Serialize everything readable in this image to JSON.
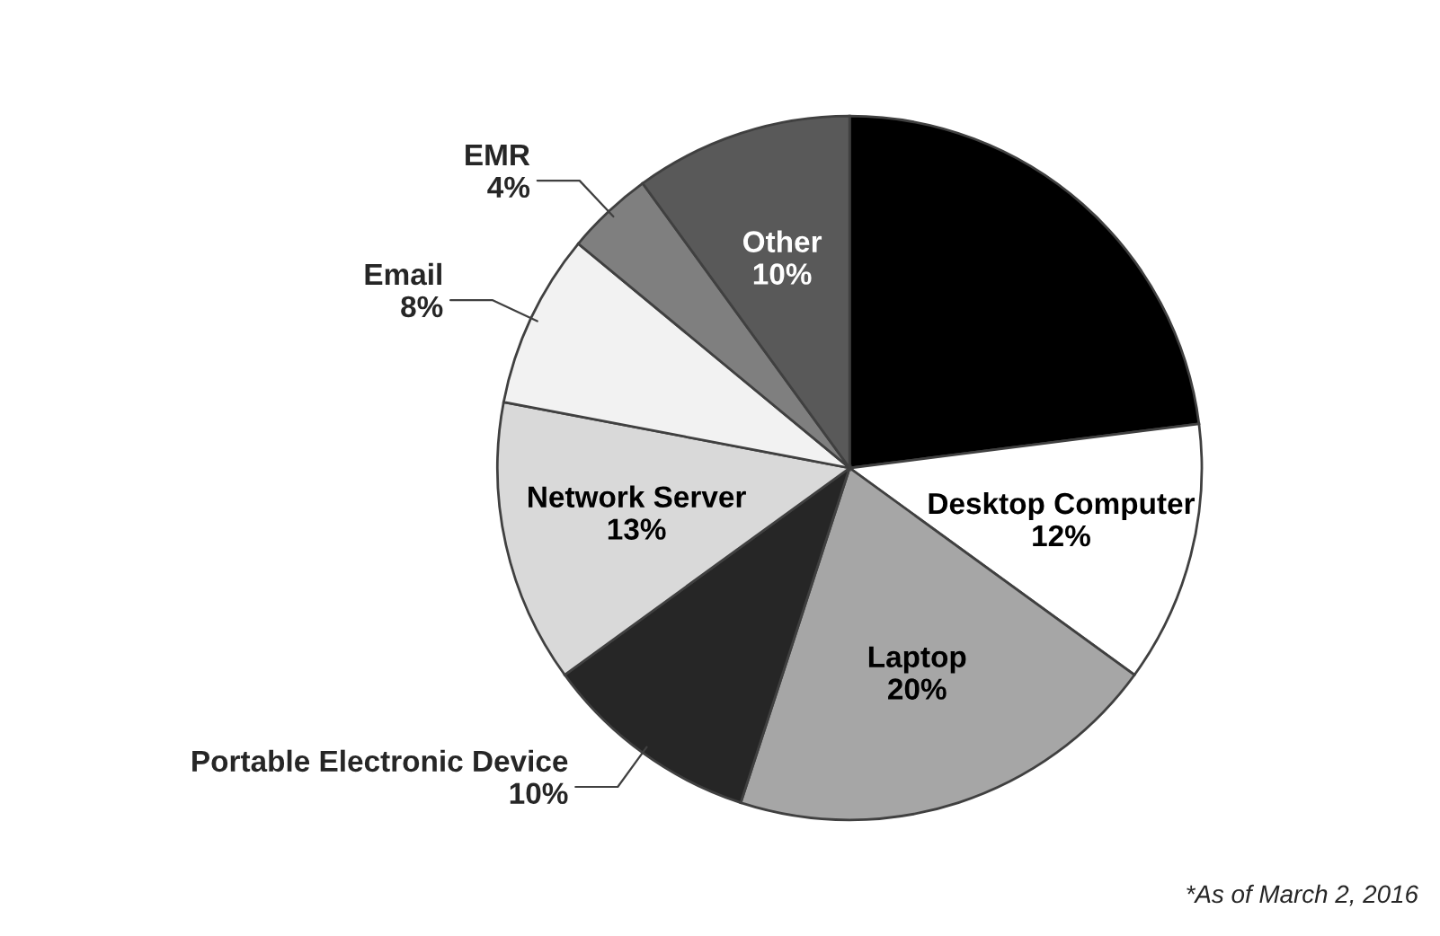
{
  "chart_data": {
    "type": "pie",
    "categories": [
      null,
      "Desktop Computer",
      "Laptop",
      "Portable Electronic Device",
      "Network Server",
      "Email",
      "EMR",
      "Other"
    ],
    "values": [
      23,
      12,
      20,
      10,
      13,
      8,
      4,
      10
    ],
    "value_labels": [
      null,
      "12%",
      "20%",
      "10%",
      "13%",
      "8%",
      "4%",
      "10%"
    ],
    "colors": [
      "#000000",
      "#ffffff",
      "#a6a6a6",
      "#262626",
      "#d9d9d9",
      "#f2f2f2",
      "#7f7f7f",
      "#595959"
    ],
    "annotations": [
      "*As of March 2, 2016"
    ],
    "legend": false
  }
}
